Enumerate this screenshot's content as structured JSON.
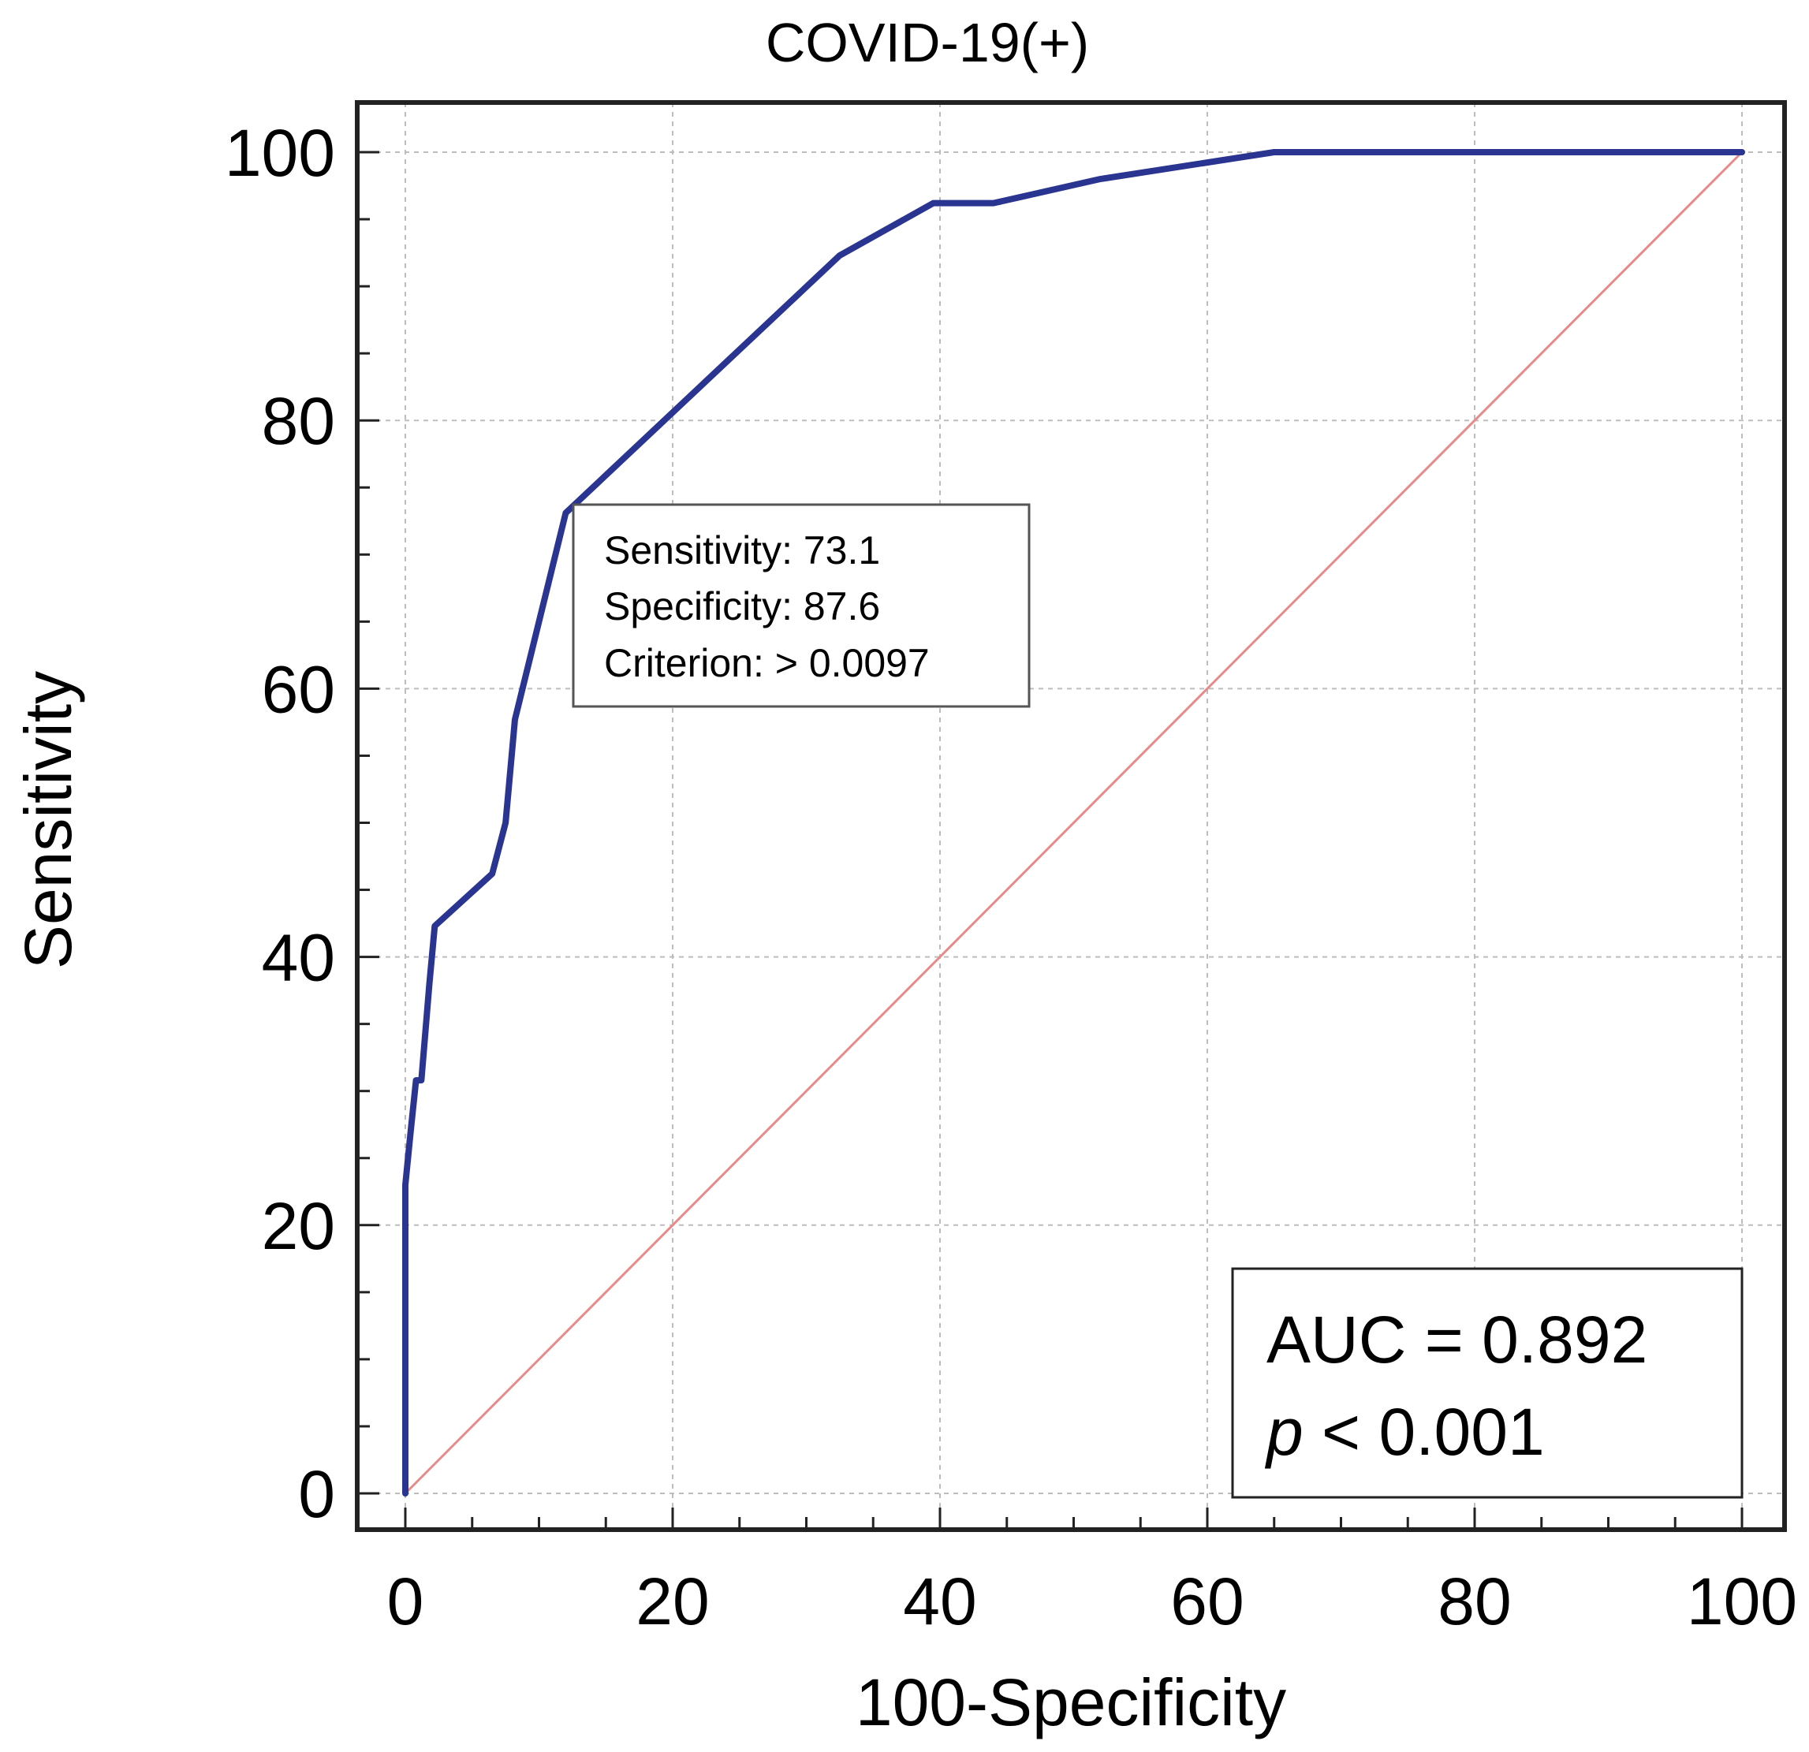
{
  "chart_data": {
    "type": "line",
    "title": "COVID-19(+)",
    "xlabel": "100-Specificity",
    "ylabel": "Sensitivity",
    "xlim": [
      0,
      100
    ],
    "ylim": [
      0,
      100
    ],
    "xticks": [
      0,
      20,
      40,
      60,
      80,
      100
    ],
    "yticks": [
      0,
      20,
      40,
      60,
      80,
      100
    ],
    "x_tick_labels": [
      "0",
      "20",
      "40",
      "60",
      "80",
      "100"
    ],
    "y_tick_labels": [
      "0",
      "20",
      "40",
      "60",
      "80",
      "100"
    ],
    "grid": true,
    "series": [
      {
        "name": "ROC curve",
        "color": "#2a3591",
        "x": [
          0,
          0,
          0.4,
          0.8,
          1.2,
          1.8,
          2.2,
          6.5,
          7.5,
          8.2,
          12,
          32.5,
          39.5,
          44,
          52,
          65,
          100
        ],
        "y": [
          0,
          23,
          27,
          30.8,
          30.8,
          38,
          42.3,
          46.2,
          50,
          57.7,
          73.1,
          92.3,
          96.2,
          96.2,
          98,
          100,
          100
        ]
      },
      {
        "name": "Reference line",
        "color": "#e88a8a",
        "x": [
          0,
          100
        ],
        "y": [
          0,
          100
        ]
      }
    ],
    "annotation": {
      "lines": [
        "Sensitivity: 73.1",
        "Specificity: 87.6",
        "Criterion: > 0.0097"
      ],
      "point_x": 12.4,
      "point_y": 73.1
    },
    "stats": {
      "auc": "AUC = 0.892",
      "p_symbol": "p",
      "p_rest": " < 0.001"
    }
  }
}
